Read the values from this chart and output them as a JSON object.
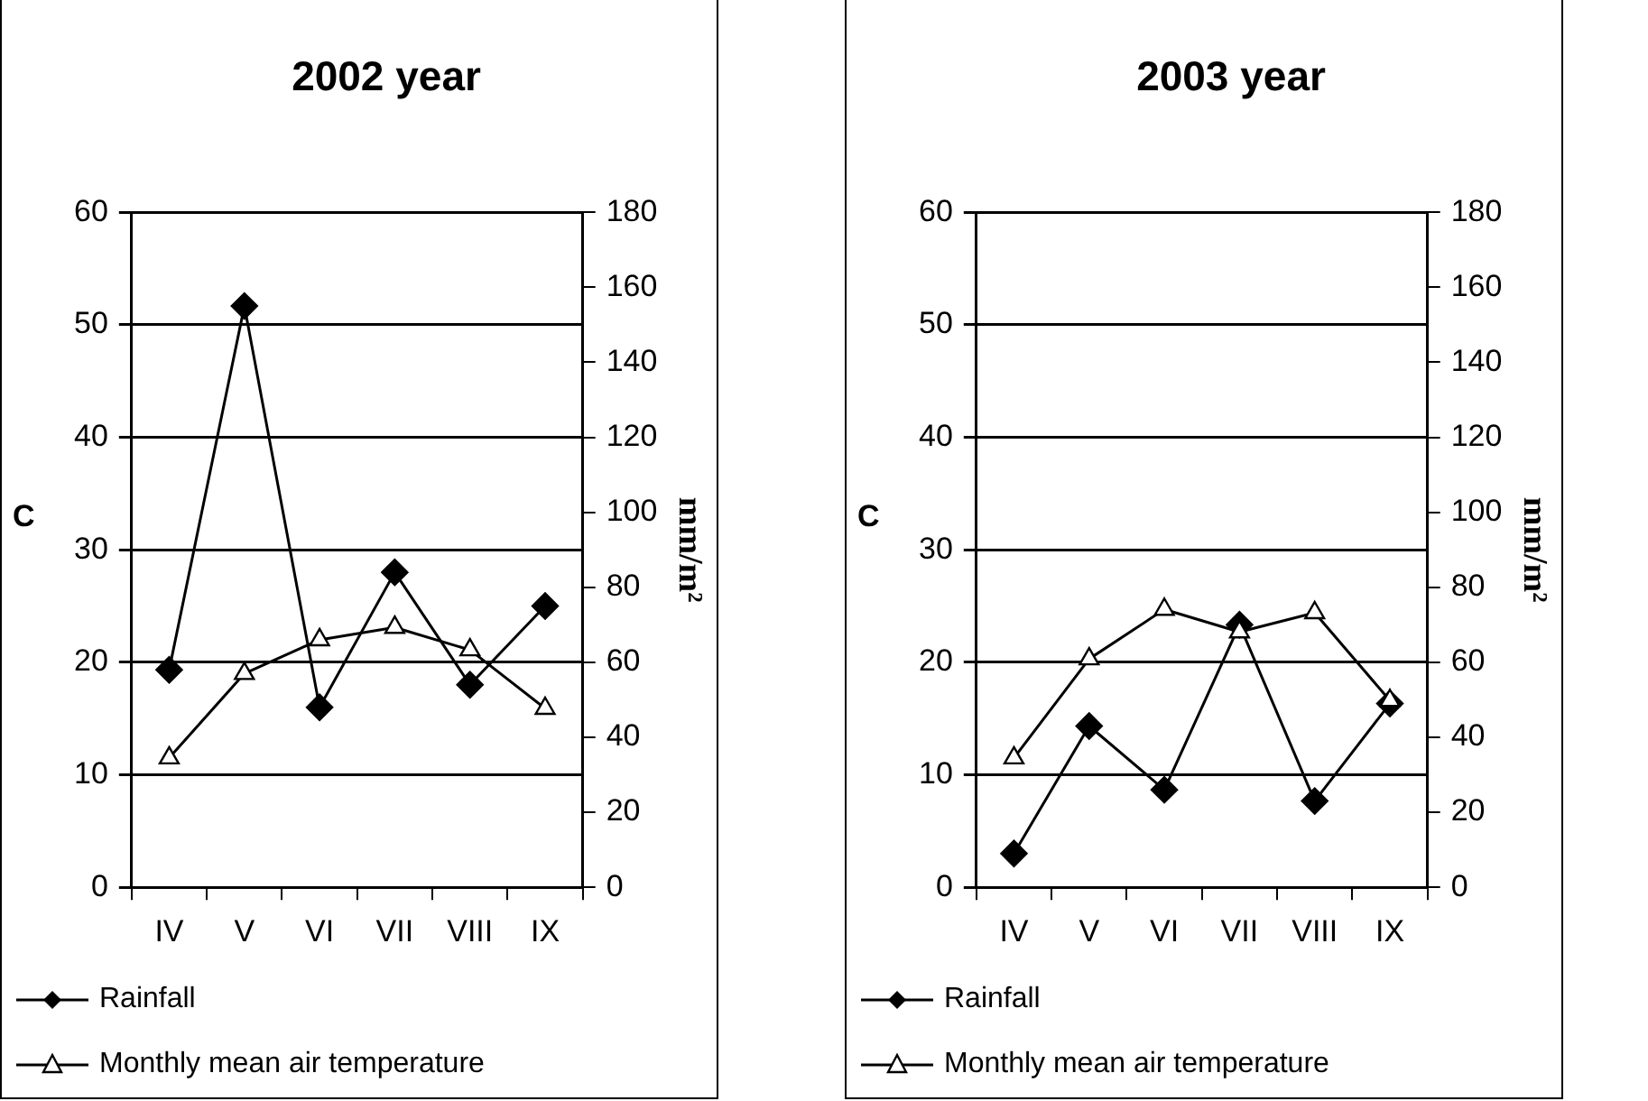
{
  "chart_data": [
    {
      "type": "line",
      "title": "2002 year",
      "ylabel": "C",
      "y2label": "mm/m²",
      "categories": [
        "IV",
        "V",
        "VI",
        "VII",
        "VIII",
        "IX"
      ],
      "series": [
        {
          "name": "Rainfall",
          "color": "#000000",
          "axis": "y2",
          "marker": "diamond",
          "values": [
            58,
            155,
            48,
            84,
            54,
            75
          ]
        },
        {
          "name": "Monthly mean air temperature",
          "color": "#000000",
          "marker": "triangle",
          "values": [
            11.5,
            19,
            22,
            23.1,
            21.1,
            15.9
          ]
        }
      ],
      "ylim": [
        0,
        60
      ],
      "yticks": [
        0,
        10,
        20,
        30,
        40,
        50,
        60
      ],
      "y2lim": [
        0,
        180
      ],
      "y2ticks": [
        0,
        20,
        40,
        60,
        80,
        100,
        120,
        140,
        160,
        180
      ],
      "grid": "y",
      "legend": "bottom left"
    },
    {
      "type": "line",
      "title": "2003 year",
      "ylabel": "C",
      "y2label": "mm/m²",
      "categories": [
        "IV",
        "V",
        "VI",
        "VII",
        "VIII",
        "IX"
      ],
      "series": [
        {
          "name": "Rainfall",
          "color": "#000000",
          "axis": "y2",
          "marker": "diamond",
          "values": [
            9,
            43,
            26,
            70,
            23,
            49
          ]
        },
        {
          "name": "Monthly mean air temperature",
          "color": "#000000",
          "marker": "triangle",
          "values": [
            11.5,
            20.3,
            24.7,
            22.7,
            24.4,
            16.6
          ]
        }
      ],
      "ylim": [
        0,
        60
      ],
      "yticks": [
        0,
        10,
        20,
        30,
        40,
        50,
        60
      ],
      "y2lim": [
        0,
        180
      ],
      "y2ticks": [
        0,
        20,
        40,
        60,
        80,
        100,
        120,
        140,
        160,
        180
      ],
      "grid": "y",
      "legend": "bottom left"
    }
  ]
}
